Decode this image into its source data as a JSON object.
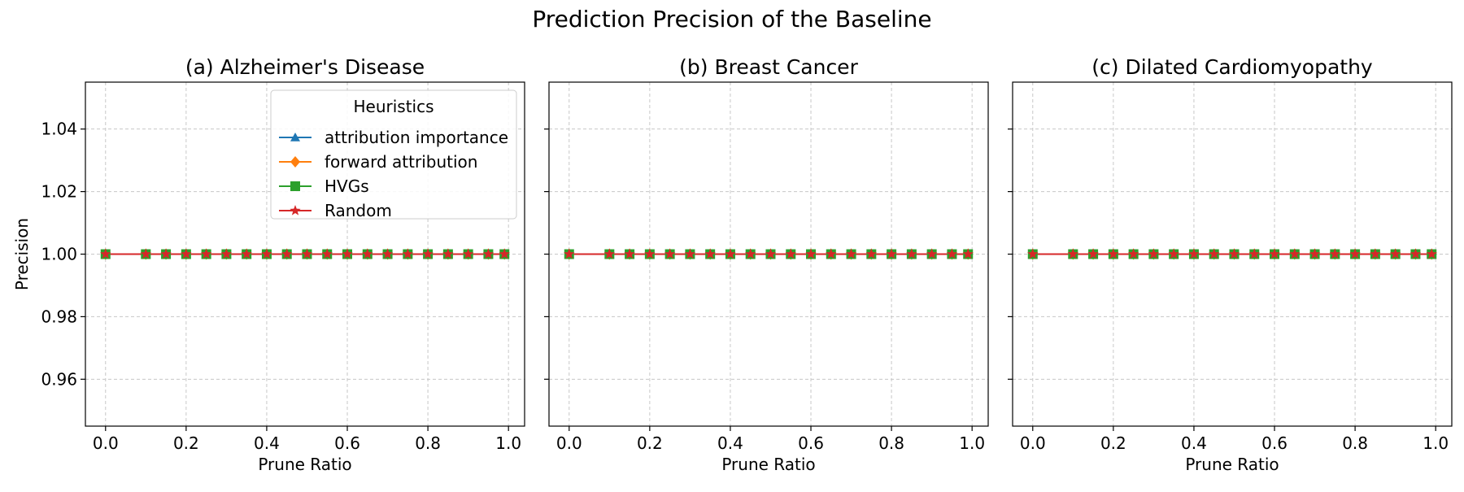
{
  "figure": {
    "suptitle": "Prediction Precision of the Baseline"
  },
  "colors": {
    "attribution importance": "#1f77b4",
    "forward attribution": "#ff7f0e",
    "HVGs": "#2ca02c",
    "Random": "#d62728"
  },
  "chart_data": [
    {
      "type": "line",
      "title": "(a) Alzheimer's Disease",
      "xlabel": "Prune Ratio",
      "ylabel": "Precision",
      "xlim": [
        -0.05,
        1.04
      ],
      "ylim": [
        0.945,
        1.055
      ],
      "xticks": [
        0.0,
        0.2,
        0.4,
        0.6,
        0.8,
        1.0
      ],
      "xtick_labels": [
        "0.0",
        "0.2",
        "0.4",
        "0.6",
        "0.8",
        "1.0"
      ],
      "yticks": [
        0.96,
        0.98,
        1.0,
        1.02,
        1.04
      ],
      "ytick_labels": [
        "0.96",
        "0.98",
        "1.00",
        "1.02",
        "1.04"
      ],
      "grid": true,
      "legend": {
        "title": "Heuristics",
        "placement": "top-right"
      },
      "x": [
        0.0,
        0.1,
        0.15,
        0.2,
        0.25,
        0.3,
        0.35,
        0.4,
        0.45,
        0.5,
        0.55,
        0.6,
        0.65,
        0.7,
        0.75,
        0.8,
        0.85,
        0.9,
        0.95,
        0.99
      ],
      "series": [
        {
          "name": "attribution importance",
          "marker": "triangle",
          "values": [
            1,
            1,
            1,
            1,
            1,
            1,
            1,
            1,
            1,
            1,
            1,
            1,
            1,
            1,
            1,
            1,
            1,
            1,
            1,
            1
          ]
        },
        {
          "name": "forward attribution",
          "marker": "diamond",
          "values": [
            1,
            1,
            1,
            1,
            1,
            1,
            1,
            1,
            1,
            1,
            1,
            1,
            1,
            1,
            1,
            1,
            1,
            1,
            1,
            1
          ]
        },
        {
          "name": "HVGs",
          "marker": "square",
          "values": [
            1,
            1,
            1,
            1,
            1,
            1,
            1,
            1,
            1,
            1,
            1,
            1,
            1,
            1,
            1,
            1,
            1,
            1,
            1,
            1
          ]
        },
        {
          "name": "Random",
          "marker": "star",
          "values": [
            1,
            1,
            1,
            1,
            1,
            1,
            1,
            1,
            1,
            1,
            1,
            1,
            1,
            1,
            1,
            1,
            1,
            1,
            1,
            1
          ]
        }
      ]
    },
    {
      "type": "line",
      "title": "(b) Breast Cancer",
      "xlabel": "Prune Ratio",
      "ylabel": "",
      "xlim": [
        -0.05,
        1.04
      ],
      "ylim": [
        0.945,
        1.055
      ],
      "xticks": [
        0.0,
        0.2,
        0.4,
        0.6,
        0.8,
        1.0
      ],
      "xtick_labels": [
        "0.0",
        "0.2",
        "0.4",
        "0.6",
        "0.8",
        "1.0"
      ],
      "yticks": [
        0.96,
        0.98,
        1.0,
        1.02,
        1.04
      ],
      "ytick_labels": [],
      "grid": true,
      "x": [
        0.0,
        0.1,
        0.15,
        0.2,
        0.25,
        0.3,
        0.35,
        0.4,
        0.45,
        0.5,
        0.55,
        0.6,
        0.65,
        0.7,
        0.75,
        0.8,
        0.85,
        0.9,
        0.95,
        0.99
      ],
      "series": [
        {
          "name": "attribution importance",
          "marker": "triangle",
          "values": [
            1,
            1,
            1,
            1,
            1,
            1,
            1,
            1,
            1,
            1,
            1,
            1,
            1,
            1,
            1,
            1,
            1,
            1,
            1,
            1
          ]
        },
        {
          "name": "forward attribution",
          "marker": "diamond",
          "values": [
            1,
            1,
            1,
            1,
            1,
            1,
            1,
            1,
            1,
            1,
            1,
            1,
            1,
            1,
            1,
            1,
            1,
            1,
            1,
            1
          ]
        },
        {
          "name": "HVGs",
          "marker": "square",
          "values": [
            1,
            1,
            1,
            1,
            1,
            1,
            1,
            1,
            1,
            1,
            1,
            1,
            1,
            1,
            1,
            1,
            1,
            1,
            1,
            1
          ]
        },
        {
          "name": "Random",
          "marker": "star",
          "values": [
            1,
            1,
            1,
            1,
            1,
            1,
            1,
            1,
            1,
            1,
            1,
            1,
            1,
            1,
            1,
            1,
            1,
            1,
            1,
            1
          ]
        }
      ]
    },
    {
      "type": "line",
      "title": "(c) Dilated Cardiomyopathy",
      "xlabel": "Prune Ratio",
      "ylabel": "",
      "xlim": [
        -0.05,
        1.04
      ],
      "ylim": [
        0.945,
        1.055
      ],
      "xticks": [
        0.0,
        0.2,
        0.4,
        0.6,
        0.8,
        1.0
      ],
      "xtick_labels": [
        "0.0",
        "0.2",
        "0.4",
        "0.6",
        "0.8",
        "1.0"
      ],
      "yticks": [
        0.96,
        0.98,
        1.0,
        1.02,
        1.04
      ],
      "ytick_labels": [],
      "grid": true,
      "x": [
        0.0,
        0.1,
        0.15,
        0.2,
        0.25,
        0.3,
        0.35,
        0.4,
        0.45,
        0.5,
        0.55,
        0.6,
        0.65,
        0.7,
        0.75,
        0.8,
        0.85,
        0.9,
        0.95,
        0.99
      ],
      "series": [
        {
          "name": "attribution importance",
          "marker": "triangle",
          "values": [
            1,
            1,
            1,
            1,
            1,
            1,
            1,
            1,
            1,
            1,
            1,
            1,
            1,
            1,
            1,
            1,
            1,
            1,
            1,
            1
          ]
        },
        {
          "name": "forward attribution",
          "marker": "diamond",
          "values": [
            1,
            1,
            1,
            1,
            1,
            1,
            1,
            1,
            1,
            1,
            1,
            1,
            1,
            1,
            1,
            1,
            1,
            1,
            1,
            1
          ]
        },
        {
          "name": "HVGs",
          "marker": "square",
          "values": [
            1,
            1,
            1,
            1,
            1,
            1,
            1,
            1,
            1,
            1,
            1,
            1,
            1,
            1,
            1,
            1,
            1,
            1,
            1,
            1
          ]
        },
        {
          "name": "Random",
          "marker": "star",
          "values": [
            1,
            1,
            1,
            1,
            1,
            1,
            1,
            1,
            1,
            1,
            1,
            1,
            1,
            1,
            1,
            1,
            1,
            1,
            1,
            1
          ]
        }
      ]
    }
  ]
}
